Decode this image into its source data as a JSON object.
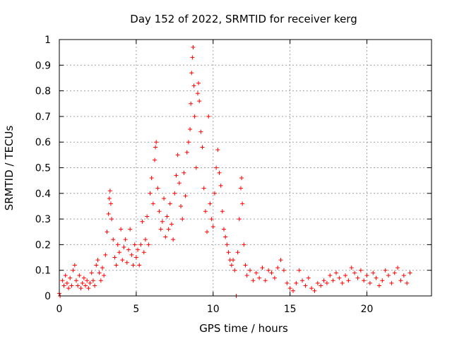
{
  "chart_data": {
    "type": "scatter",
    "title": "Day 152 of 2022, SRMTID for receiver kerg",
    "xlabel": "GPS time / hours",
    "ylabel": "SRMTID / TECUs",
    "xlim": [
      0,
      24.2
    ],
    "ylim": [
      0,
      1
    ],
    "xticks": [
      0,
      5,
      10,
      15,
      20
    ],
    "xtick_labels": [
      "0",
      "5",
      "10",
      "15",
      "20"
    ],
    "yticks": [
      0,
      0.1,
      0.2,
      0.3,
      0.4,
      0.5,
      0.6,
      0.7,
      0.8,
      0.9,
      1
    ],
    "ytick_labels": [
      "0",
      "0.1",
      "0.2",
      "0.3",
      "0.4",
      "0.5",
      "0.6",
      "0.7",
      "0.8",
      "0.9",
      "1"
    ],
    "grid": true,
    "marker": "+",
    "color": "#ff0000",
    "series": [
      {
        "name": "kerg",
        "points": [
          [
            0.0,
            0.01
          ],
          [
            0.05,
            0.0
          ],
          [
            0.2,
            0.06
          ],
          [
            0.3,
            0.04
          ],
          [
            0.4,
            0.08
          ],
          [
            0.5,
            0.05
          ],
          [
            0.6,
            0.03
          ],
          [
            0.7,
            0.07
          ],
          [
            0.8,
            0.04
          ],
          [
            0.9,
            0.1
          ],
          [
            1.0,
            0.12
          ],
          [
            1.1,
            0.06
          ],
          [
            1.2,
            0.04
          ],
          [
            1.3,
            0.08
          ],
          [
            1.4,
            0.03
          ],
          [
            1.5,
            0.05
          ],
          [
            1.6,
            0.07
          ],
          [
            1.7,
            0.04
          ],
          [
            1.8,
            0.06
          ],
          [
            1.9,
            0.03
          ],
          [
            2.0,
            0.05
          ],
          [
            2.1,
            0.09
          ],
          [
            2.2,
            0.06
          ],
          [
            2.3,
            0.04
          ],
          [
            2.4,
            0.12
          ],
          [
            2.5,
            0.14
          ],
          [
            2.6,
            0.09
          ],
          [
            2.7,
            0.06
          ],
          [
            2.8,
            0.11
          ],
          [
            2.9,
            0.08
          ],
          [
            3.0,
            0.16
          ],
          [
            3.1,
            0.25
          ],
          [
            3.2,
            0.32
          ],
          [
            3.25,
            0.38
          ],
          [
            3.3,
            0.41
          ],
          [
            3.35,
            0.36
          ],
          [
            3.4,
            0.3
          ],
          [
            3.5,
            0.22
          ],
          [
            3.6,
            0.15
          ],
          [
            3.7,
            0.12
          ],
          [
            3.8,
            0.2
          ],
          [
            3.9,
            0.17
          ],
          [
            4.0,
            0.26
          ],
          [
            4.1,
            0.14
          ],
          [
            4.2,
            0.19
          ],
          [
            4.3,
            0.22
          ],
          [
            4.4,
            0.13
          ],
          [
            4.5,
            0.18
          ],
          [
            4.6,
            0.26
          ],
          [
            4.7,
            0.16
          ],
          [
            4.8,
            0.12
          ],
          [
            4.9,
            0.2
          ],
          [
            5.0,
            0.15
          ],
          [
            5.1,
            0.18
          ],
          [
            5.2,
            0.12
          ],
          [
            5.3,
            0.2
          ],
          [
            5.4,
            0.29
          ],
          [
            5.5,
            0.17
          ],
          [
            5.6,
            0.22
          ],
          [
            5.7,
            0.31
          ],
          [
            5.8,
            0.2
          ],
          [
            5.9,
            0.4
          ],
          [
            6.0,
            0.46
          ],
          [
            6.1,
            0.36
          ],
          [
            6.2,
            0.53
          ],
          [
            6.25,
            0.58
          ],
          [
            6.3,
            0.6
          ],
          [
            6.4,
            0.42
          ],
          [
            6.5,
            0.33
          ],
          [
            6.6,
            0.26
          ],
          [
            6.7,
            0.29
          ],
          [
            6.8,
            0.38
          ],
          [
            6.9,
            0.23
          ],
          [
            7.0,
            0.31
          ],
          [
            7.1,
            0.26
          ],
          [
            7.2,
            0.36
          ],
          [
            7.3,
            0.28
          ],
          [
            7.4,
            0.22
          ],
          [
            7.5,
            0.4
          ],
          [
            7.6,
            0.47
          ],
          [
            7.7,
            0.55
          ],
          [
            7.8,
            0.44
          ],
          [
            7.9,
            0.35
          ],
          [
            8.0,
            0.3
          ],
          [
            8.1,
            0.48
          ],
          [
            8.2,
            0.39
          ],
          [
            8.3,
            0.56
          ],
          [
            8.4,
            0.6
          ],
          [
            8.5,
            0.65
          ],
          [
            8.55,
            0.75
          ],
          [
            8.6,
            0.87
          ],
          [
            8.65,
            0.93
          ],
          [
            8.7,
            0.97
          ],
          [
            8.75,
            0.82
          ],
          [
            8.8,
            0.7
          ],
          [
            8.9,
            0.5
          ],
          [
            9.0,
            0.79
          ],
          [
            9.05,
            0.83
          ],
          [
            9.1,
            0.76
          ],
          [
            9.2,
            0.64
          ],
          [
            9.3,
            0.58
          ],
          [
            9.4,
            0.42
          ],
          [
            9.5,
            0.33
          ],
          [
            9.6,
            0.25
          ],
          [
            9.7,
            0.7
          ],
          [
            9.8,
            0.36
          ],
          [
            9.9,
            0.3
          ],
          [
            10.0,
            0.27
          ],
          [
            10.1,
            0.4
          ],
          [
            10.2,
            0.5
          ],
          [
            10.3,
            0.57
          ],
          [
            10.4,
            0.48
          ],
          [
            10.5,
            0.43
          ],
          [
            10.6,
            0.33
          ],
          [
            10.7,
            0.26
          ],
          [
            10.8,
            0.23
          ],
          [
            10.9,
            0.2
          ],
          [
            11.0,
            0.17
          ],
          [
            11.1,
            0.14
          ],
          [
            11.2,
            0.12
          ],
          [
            11.3,
            0.14
          ],
          [
            11.4,
            0.1
          ],
          [
            11.5,
            0.0
          ],
          [
            11.6,
            0.17
          ],
          [
            11.7,
            0.3
          ],
          [
            11.8,
            0.42
          ],
          [
            11.85,
            0.46
          ],
          [
            11.9,
            0.36
          ],
          [
            12.0,
            0.2
          ],
          [
            12.1,
            0.12
          ],
          [
            12.2,
            0.08
          ],
          [
            12.4,
            0.1
          ],
          [
            12.6,
            0.06
          ],
          [
            12.8,
            0.09
          ],
          [
            13.0,
            0.07
          ],
          [
            13.2,
            0.11
          ],
          [
            13.4,
            0.06
          ],
          [
            13.6,
            0.1
          ],
          [
            13.8,
            0.09
          ],
          [
            14.0,
            0.07
          ],
          [
            14.2,
            0.11
          ],
          [
            14.4,
            0.14
          ],
          [
            14.6,
            0.1
          ],
          [
            14.8,
            0.05
          ],
          [
            15.0,
            0.03
          ],
          [
            15.2,
            0.02
          ],
          [
            15.4,
            0.05
          ],
          [
            15.6,
            0.1
          ],
          [
            15.8,
            0.06
          ],
          [
            16.0,
            0.04
          ],
          [
            16.2,
            0.07
          ],
          [
            16.4,
            0.03
          ],
          [
            16.6,
            0.02
          ],
          [
            16.8,
            0.05
          ],
          [
            17.0,
            0.04
          ],
          [
            17.2,
            0.06
          ],
          [
            17.4,
            0.05
          ],
          [
            17.6,
            0.08
          ],
          [
            17.8,
            0.06
          ],
          [
            18.0,
            0.09
          ],
          [
            18.2,
            0.07
          ],
          [
            18.4,
            0.05
          ],
          [
            18.6,
            0.08
          ],
          [
            18.8,
            0.06
          ],
          [
            19.0,
            0.11
          ],
          [
            19.2,
            0.09
          ],
          [
            19.4,
            0.07
          ],
          [
            19.6,
            0.1
          ],
          [
            19.8,
            0.06
          ],
          [
            20.0,
            0.08
          ],
          [
            20.2,
            0.05
          ],
          [
            20.4,
            0.09
          ],
          [
            20.6,
            0.07
          ],
          [
            20.8,
            0.04
          ],
          [
            21.0,
            0.06
          ],
          [
            21.2,
            0.1
          ],
          [
            21.4,
            0.08
          ],
          [
            21.6,
            0.05
          ],
          [
            21.8,
            0.09
          ],
          [
            22.0,
            0.11
          ],
          [
            22.2,
            0.06
          ],
          [
            22.4,
            0.08
          ],
          [
            22.6,
            0.05
          ],
          [
            22.8,
            0.09
          ]
        ]
      }
    ]
  }
}
